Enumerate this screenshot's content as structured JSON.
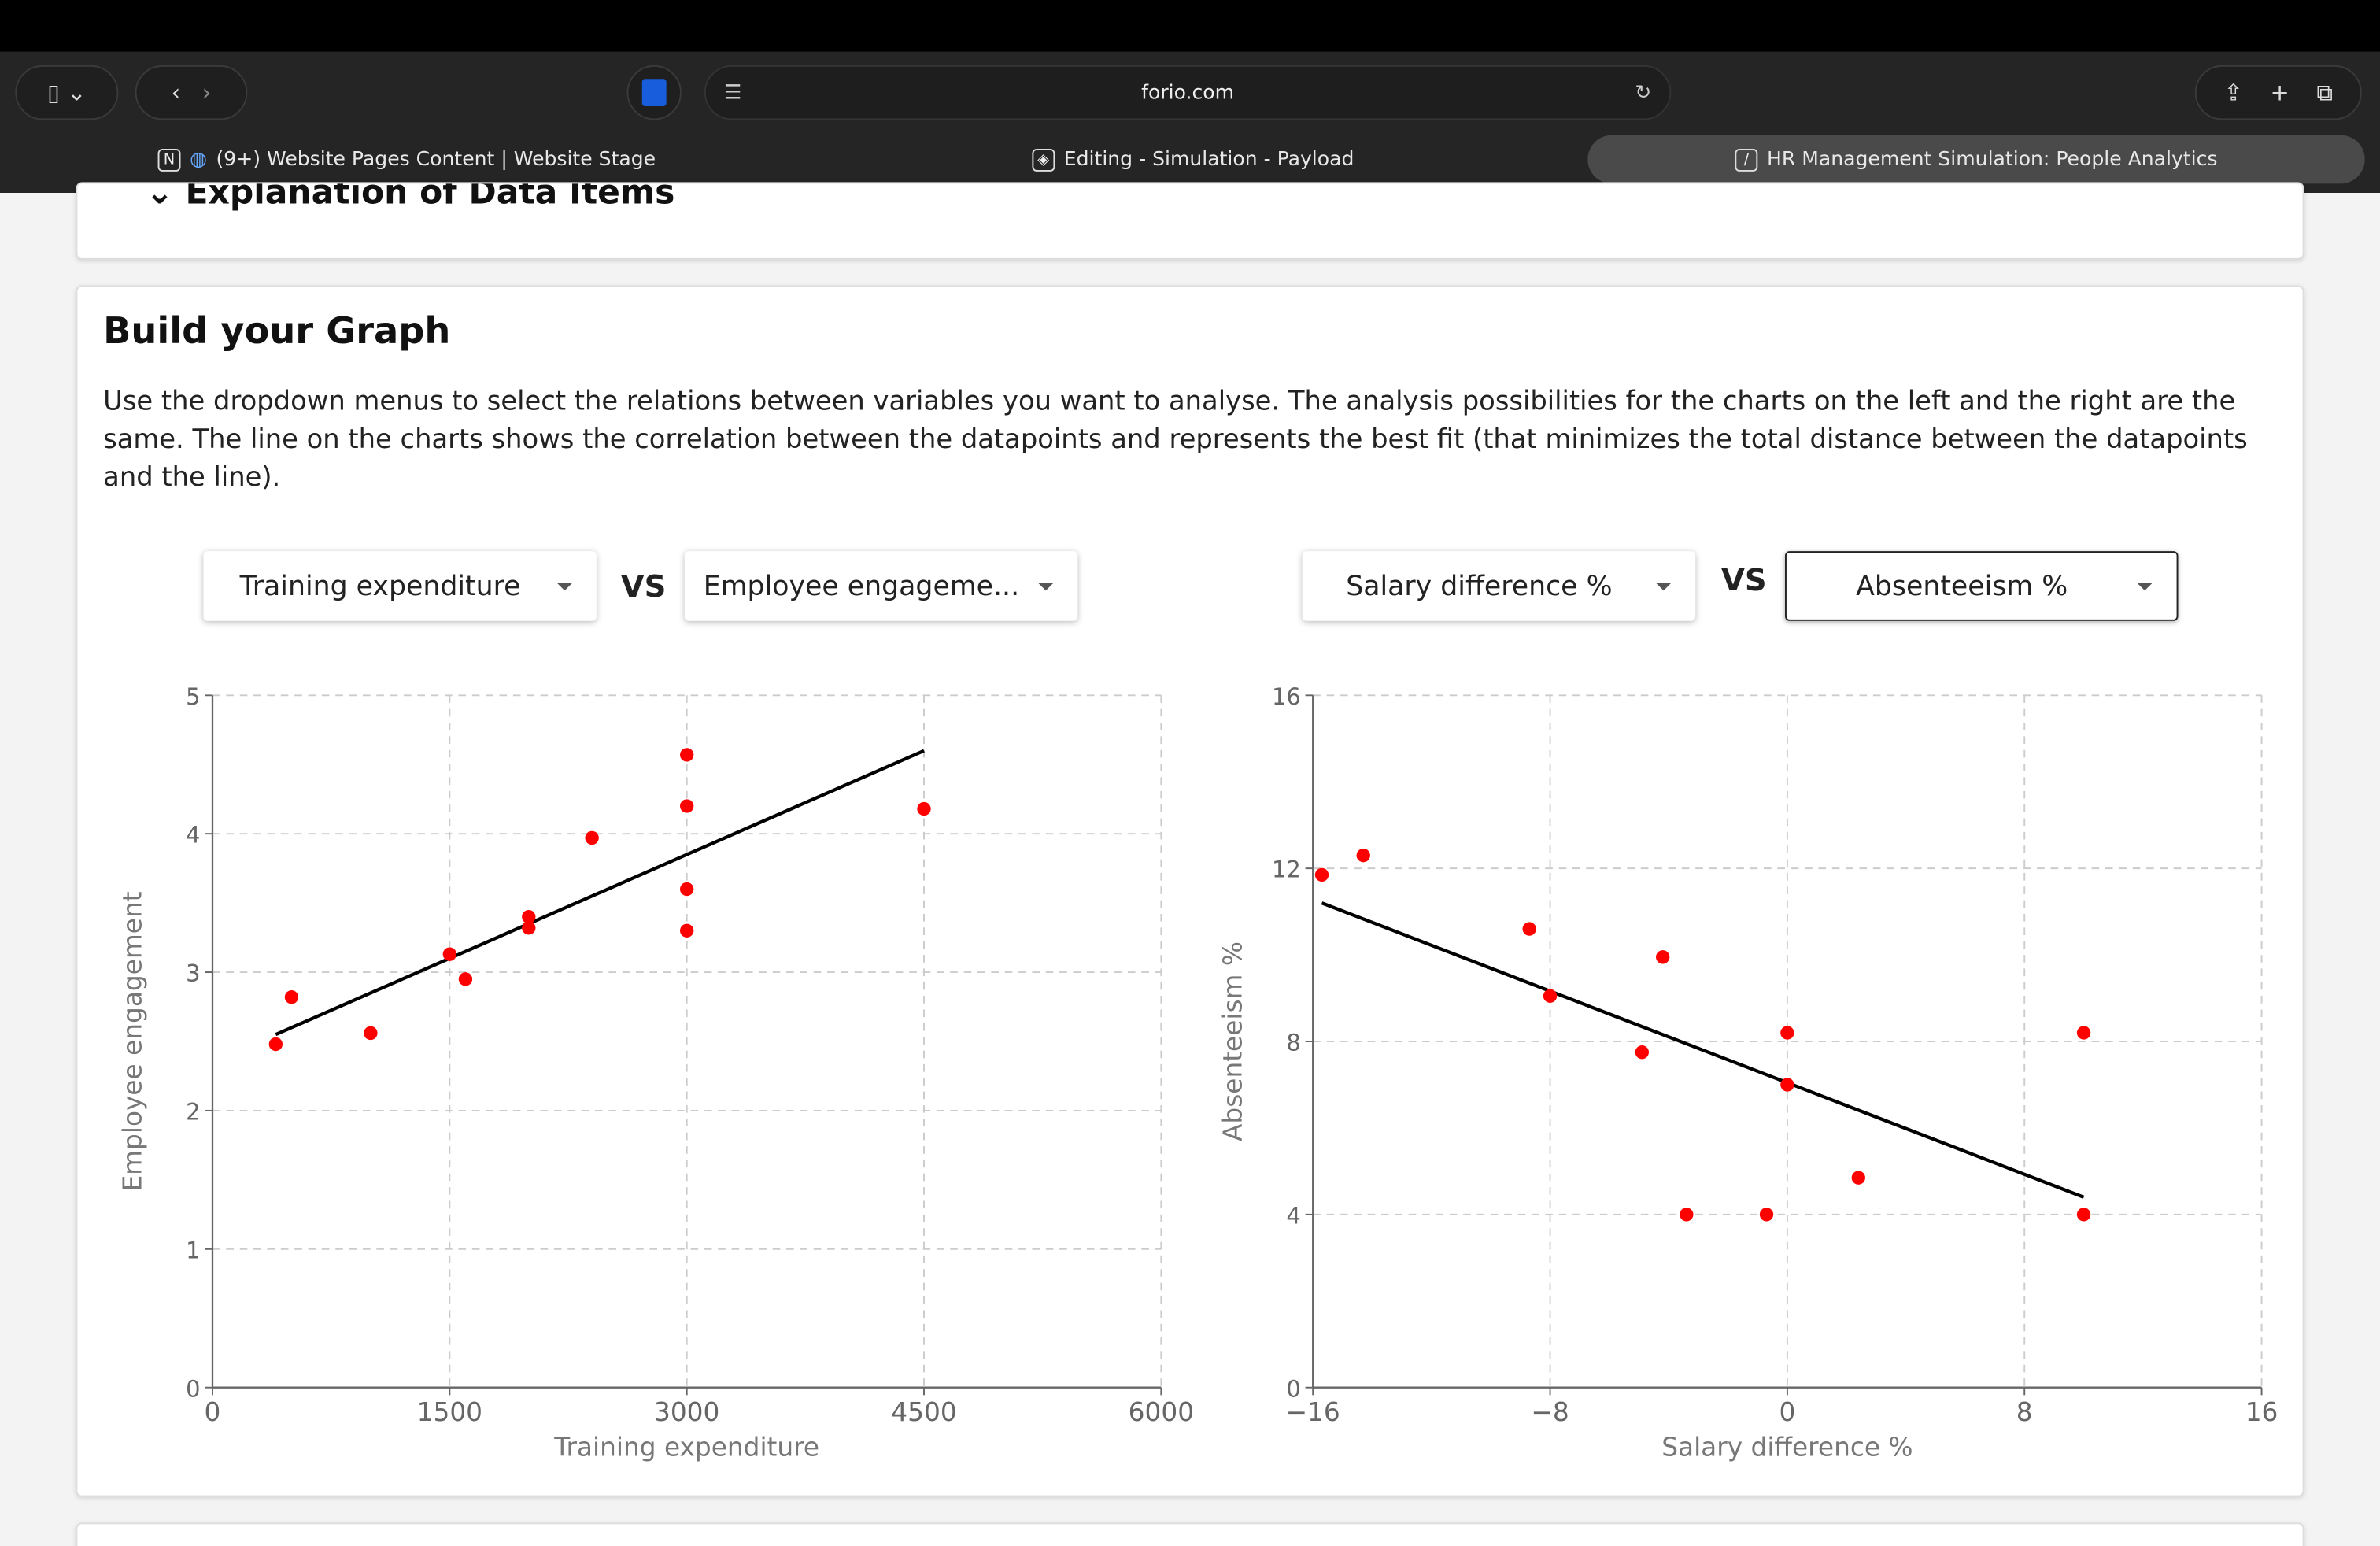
{
  "browser": {
    "address": "forio.com",
    "tabs": [
      {
        "label": "(9+) Website Pages Content | Website Stage"
      },
      {
        "label": "Editing - Simulation - Payload"
      },
      {
        "label": "HR Management Simulation: People Analytics"
      }
    ]
  },
  "section_above": {
    "title": "Explanation of Data Items"
  },
  "card": {
    "title": "Build your Graph",
    "description": "Use the dropdown menus to select the relations between variables you want to analyse. The analysis possibilities for the charts on the left and the right are the same. The line on the charts shows the correlation between the datapoints and represents the best fit (that minimizes the total distance between the datapoints and the line).",
    "left": {
      "x_select": "Training expenditure",
      "vs": "VS",
      "y_select": "Employee engageme..."
    },
    "right": {
      "x_select": "Salary difference %",
      "vs": "VS",
      "y_select": "Absenteeism %"
    }
  },
  "colors": {
    "point": "#ff0000",
    "line": "#000000"
  },
  "chart_data": [
    {
      "type": "scatter",
      "xlabel": "Training expenditure",
      "ylabel": "Employee engagement",
      "xlim": [
        0,
        6000
      ],
      "ylim": [
        0,
        5
      ],
      "xticks": [
        0,
        1500,
        3000,
        4500,
        6000
      ],
      "yticks": [
        0,
        1,
        2,
        3,
        4,
        5
      ],
      "grid": true,
      "x": [
        400,
        500,
        1000,
        1500,
        1600,
        2000,
        2000,
        2400,
        3000,
        3000,
        3000,
        3000,
        4500
      ],
      "y": [
        2.48,
        2.82,
        2.56,
        3.13,
        2.95,
        3.4,
        3.32,
        3.97,
        4.57,
        4.2,
        3.6,
        3.3,
        4.18
      ],
      "fit_line": [
        [
          400,
          2.55
        ],
        [
          4500,
          4.6
        ]
      ]
    },
    {
      "type": "scatter",
      "xlabel": "Salary difference %",
      "ylabel": "Absenteeism %",
      "xlim": [
        -16,
        16
      ],
      "ylim": [
        0,
        16
      ],
      "xticks": [
        -16,
        -8,
        0,
        8,
        16
      ],
      "yticks": [
        0,
        4,
        8,
        12,
        16
      ],
      "grid": true,
      "x": [
        -15.7,
        -14.3,
        -8.7,
        -8,
        -4.9,
        -4.2,
        -3.4,
        -0.7,
        0,
        0,
        2.4,
        10,
        10
      ],
      "y": [
        11.85,
        12.3,
        10.6,
        9.05,
        7.75,
        9.95,
        4,
        4,
        8.2,
        7,
        4.85,
        8.2,
        4
      ],
      "fit_line": [
        [
          -15.7,
          11.2
        ],
        [
          10,
          4.4
        ]
      ]
    }
  ]
}
